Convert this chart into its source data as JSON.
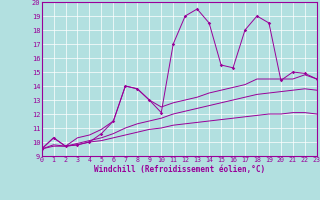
{
  "xlabel": "Windchill (Refroidissement éolien,°C)",
  "bg_color": "#b2e0e0",
  "line_color": "#990099",
  "grid_color": "#ffffff",
  "xmin": 0,
  "xmax": 23,
  "ymin": 9,
  "ymax": 20,
  "x_data": [
    0,
    1,
    2,
    3,
    4,
    5,
    6,
    7,
    8,
    9,
    10,
    11,
    12,
    13,
    14,
    15,
    16,
    17,
    18,
    19,
    20,
    21,
    22,
    23
  ],
  "line1_y": [
    9.5,
    10.3,
    9.7,
    9.8,
    10.0,
    10.6,
    11.5,
    14.0,
    13.8,
    13.0,
    12.1,
    17.0,
    19.0,
    19.5,
    18.5,
    15.5,
    15.3,
    18.0,
    19.0,
    18.5,
    14.4,
    15.0,
    14.9,
    14.5
  ],
  "line2_y": [
    9.5,
    10.3,
    9.7,
    10.3,
    10.5,
    10.9,
    11.5,
    14.0,
    13.8,
    13.0,
    12.5,
    12.8,
    13.0,
    13.2,
    13.5,
    13.7,
    13.9,
    14.1,
    14.5,
    14.5,
    14.5,
    14.5,
    14.8,
    14.5
  ],
  "line3_y": [
    9.5,
    9.8,
    9.7,
    9.9,
    10.1,
    10.3,
    10.6,
    11.0,
    11.3,
    11.5,
    11.7,
    12.0,
    12.2,
    12.4,
    12.6,
    12.8,
    13.0,
    13.2,
    13.4,
    13.5,
    13.6,
    13.7,
    13.8,
    13.7
  ],
  "line4_y": [
    9.5,
    9.7,
    9.7,
    9.8,
    10.0,
    10.1,
    10.3,
    10.5,
    10.7,
    10.9,
    11.0,
    11.2,
    11.3,
    11.4,
    11.5,
    11.6,
    11.7,
    11.8,
    11.9,
    12.0,
    12.0,
    12.1,
    12.1,
    12.0
  ]
}
